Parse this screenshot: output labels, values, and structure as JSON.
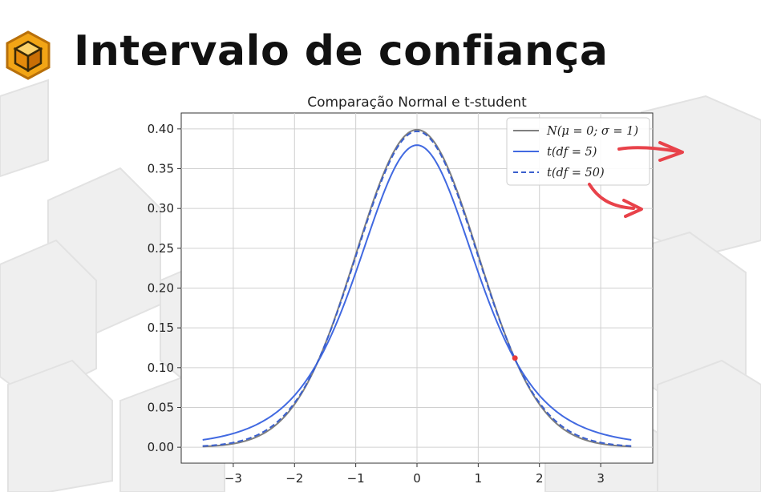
{
  "slide": {
    "title": "Intervalo de confiança",
    "logo_icon": "orange-cube-logo-icon"
  },
  "chart_data": {
    "type": "line",
    "title": "Comparação Normal e t-student",
    "xlabel": "",
    "ylabel": "",
    "xlim": [
      -3.85,
      3.85
    ],
    "ylim": [
      -0.02,
      0.42
    ],
    "xticks": [
      -3,
      -2,
      -1,
      0,
      1,
      2,
      3
    ],
    "xtick_labels": [
      "−3",
      "−2",
      "−1",
      "0",
      "1",
      "2",
      "3"
    ],
    "yticks": [
      0.0,
      0.05,
      0.1,
      0.15,
      0.2,
      0.25,
      0.3,
      0.35,
      0.4
    ],
    "ytick_labels": [
      "0.00",
      "0.05",
      "0.10",
      "0.15",
      "0.20",
      "0.25",
      "0.30",
      "0.35",
      "0.40"
    ],
    "grid": true,
    "legend_position": "top-right",
    "series": [
      {
        "name": "N(μ = 0; σ = 1)",
        "color": "#7f7f7f",
        "style": "solid",
        "dist": "normal",
        "x": [
          -3.5,
          -3,
          -2.5,
          -2,
          -1.5,
          -1,
          -0.5,
          0,
          0.5,
          1,
          1.5,
          2,
          2.5,
          3,
          3.5
        ],
        "y": [
          0.001,
          0.004,
          0.018,
          0.054,
          0.13,
          0.242,
          0.352,
          0.399,
          0.352,
          0.242,
          0.13,
          0.054,
          0.018,
          0.004,
          0.001
        ]
      },
      {
        "name": "t(df = 5)",
        "color": "#4169e1",
        "style": "solid",
        "dist": "t",
        "df": 5,
        "x": [
          -3.5,
          -3,
          -2.5,
          -2,
          -1.5,
          -1,
          -0.5,
          0,
          0.5,
          1,
          1.5,
          2,
          2.5,
          3,
          3.5
        ],
        "y": [
          0.009,
          0.017,
          0.034,
          0.065,
          0.124,
          0.22,
          0.33,
          0.38,
          0.33,
          0.22,
          0.124,
          0.065,
          0.034,
          0.017,
          0.009
        ]
      },
      {
        "name": "t(df = 50)",
        "color": "#3a5fcd",
        "style": "dashed",
        "dist": "t",
        "df": 50,
        "x": [
          -3.5,
          -3,
          -2.5,
          -2,
          -1.5,
          -1,
          -0.5,
          0,
          0.5,
          1,
          1.5,
          2,
          2.5,
          3,
          3.5
        ],
        "y": [
          0.001,
          0.005,
          0.019,
          0.056,
          0.13,
          0.24,
          0.349,
          0.397,
          0.349,
          0.24,
          0.13,
          0.056,
          0.019,
          0.005,
          0.001
        ]
      }
    ],
    "annotations": {
      "marker_point": {
        "x": 1.6,
        "y": 0.112,
        "color": "#e63b3b"
      }
    }
  }
}
